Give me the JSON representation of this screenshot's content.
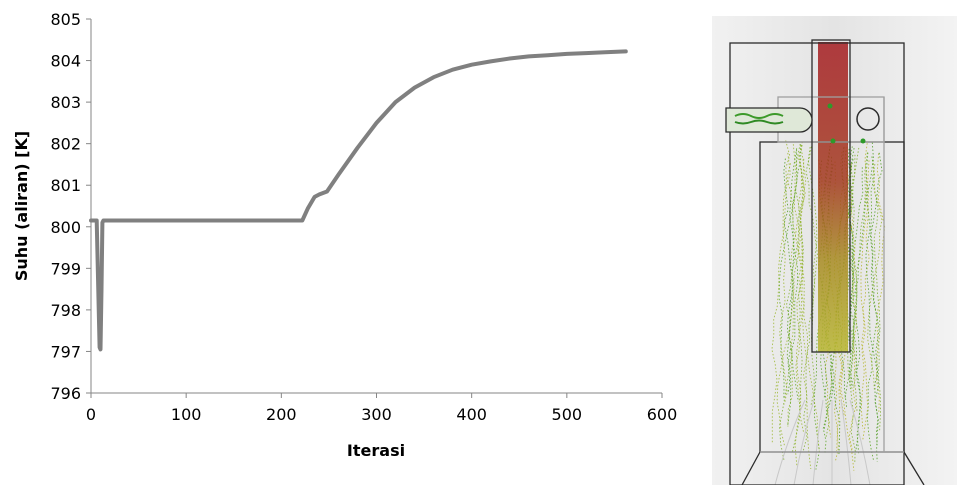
{
  "chart_data": {
    "type": "line",
    "title": "",
    "xlabel": "Iterasi",
    "ylabel": "Suhu (aliran)  [K]",
    "xlim": [
      0,
      600
    ],
    "ylim": [
      796,
      805
    ],
    "xticks": [
      "0",
      "100",
      "200",
      "300",
      "400",
      "500",
      "600"
    ],
    "yticks": [
      "796",
      "797",
      "798",
      "799",
      "800",
      "801",
      "802",
      "803",
      "804",
      "805"
    ],
    "grid": false,
    "legend": "none",
    "series": [
      {
        "color": "#808080",
        "x": [
          0,
          6,
          9,
          10,
          11,
          12,
          13,
          20,
          100,
          200,
          222,
          228,
          235,
          240,
          248,
          260,
          280,
          300,
          320,
          340,
          360,
          380,
          400,
          420,
          440,
          460,
          480,
          500,
          520,
          540,
          562
        ],
        "y": [
          800.15,
          800.15,
          797.1,
          797.05,
          798.5,
          800.1,
          800.15,
          800.15,
          800.15,
          800.15,
          800.15,
          800.45,
          800.72,
          800.78,
          800.85,
          801.25,
          801.9,
          802.5,
          803.0,
          803.35,
          803.6,
          803.78,
          803.9,
          803.98,
          804.05,
          804.1,
          804.13,
          804.16,
          804.18,
          804.2,
          804.22
        ]
      }
    ]
  },
  "simulation_image": {
    "description_icon": "flow-trajectory-render",
    "colors": {
      "background": "#ececec",
      "housing_line": "#2b2b2b",
      "hot_stream": "#a51c20",
      "mid_stream": "#b5b52a",
      "cool_stream": "#5aa321",
      "outline_gray": "#a0a0a0"
    }
  }
}
